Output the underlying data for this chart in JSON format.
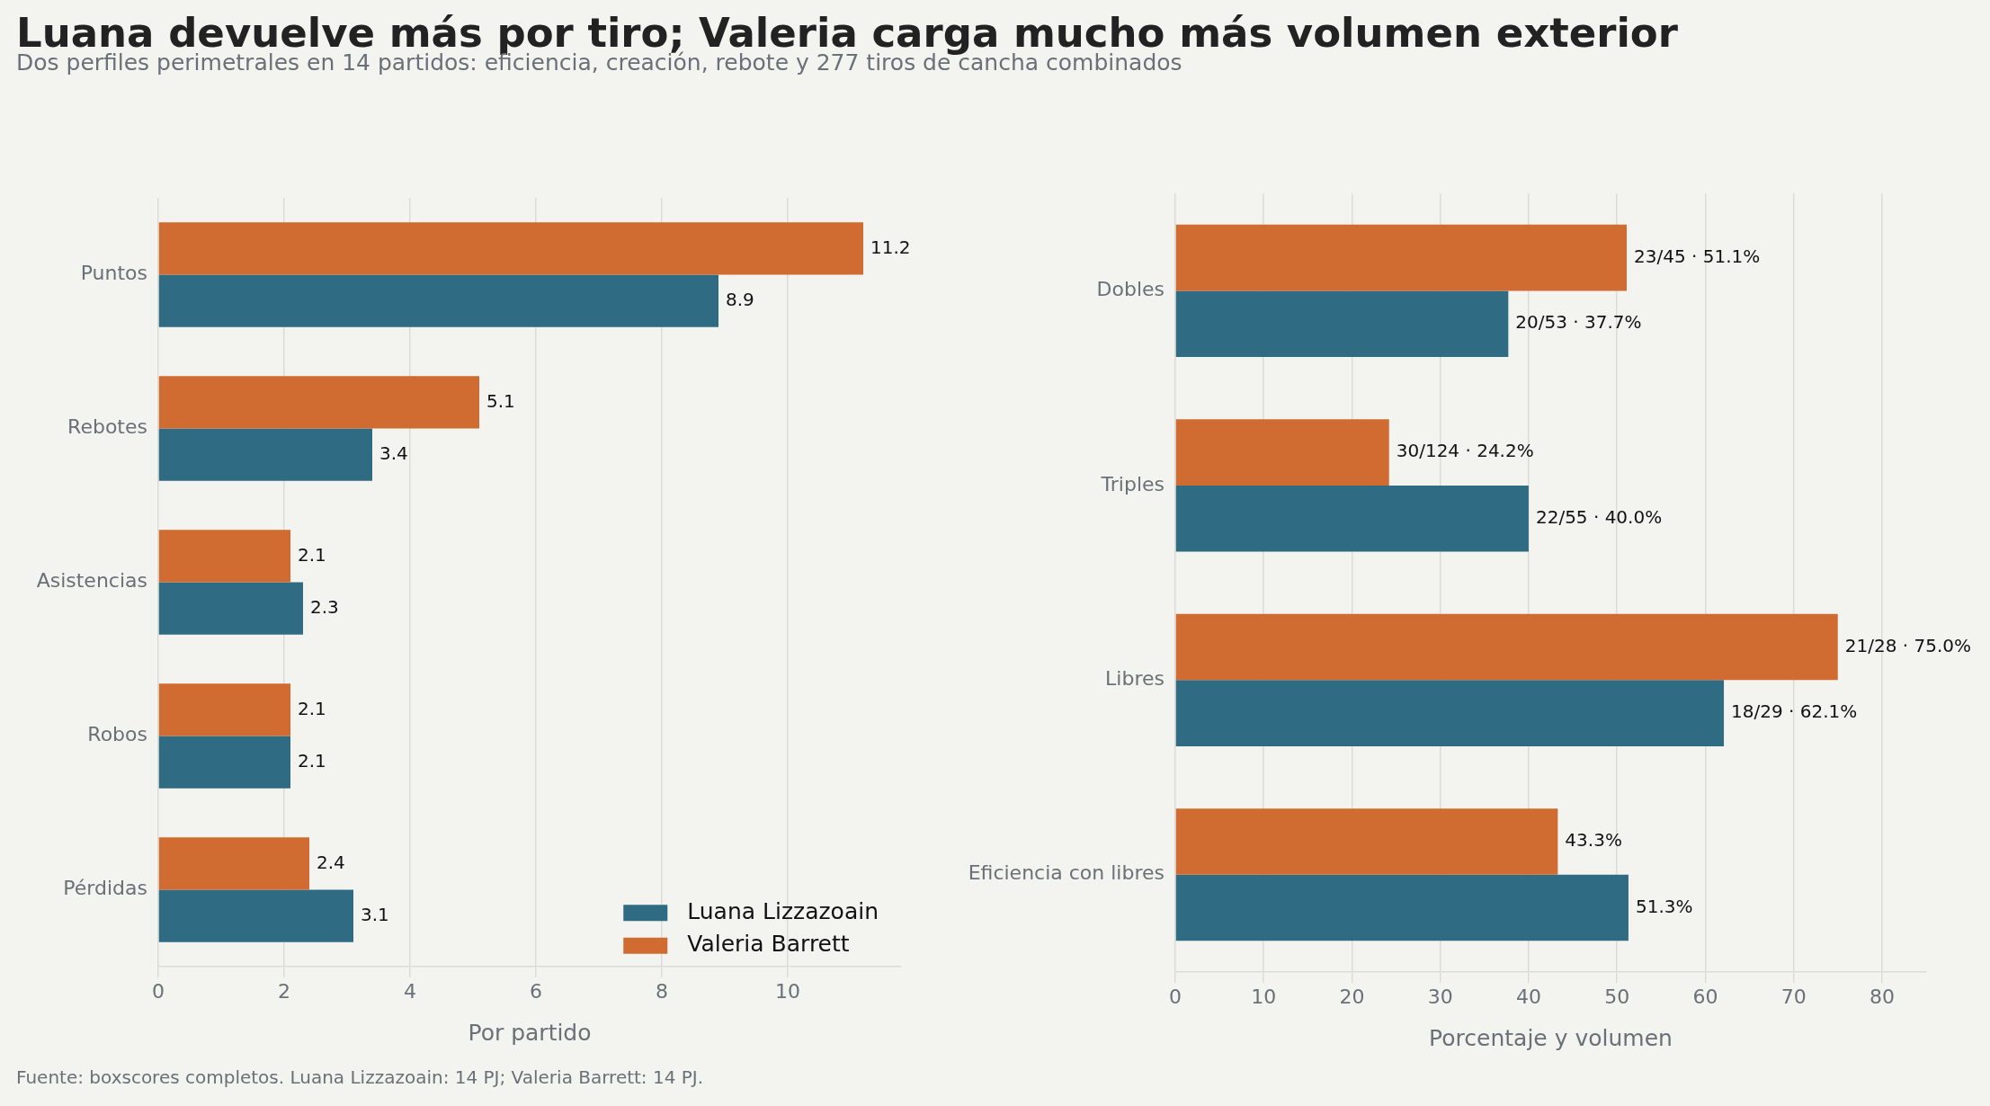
{
  "chart_data": [
    {
      "type": "bar",
      "orientation": "horizontal",
      "title": "Luana devuelve más por tiro; Valeria carga mucho más volumen exterior",
      "subtitle": "Dos perfiles perimetrales en 14 partidos: eficiencia, creación, rebote y 277 tiros de cancha combinados",
      "annotations": [
        "Fuente: boxscores completos. Luana Lizzazoain: 14 PJ; Valeria Barrett: 14 PJ."
      ],
      "xlabel": "Por partido",
      "categories": [
        "Puntos",
        "Rebotes",
        "Asistencias",
        "Robos",
        "Pérdidas"
      ],
      "series": [
        {
          "name": "Luana Lizzazoain",
          "color": "#306b84",
          "values": [
            8.9,
            3.4,
            2.3,
            2.1,
            3.1
          ]
        },
        {
          "name": "Valeria Barrett",
          "color": "#d06b32",
          "values": [
            11.2,
            5.1,
            2.1,
            2.1,
            2.4
          ]
        }
      ],
      "xlim": [
        0,
        11.8
      ],
      "xticks": [
        0,
        2,
        4,
        6,
        8,
        10
      ],
      "grid": "x",
      "legend": "bottom right",
      "data_labels": true
    },
    {
      "type": "bar",
      "orientation": "horizontal",
      "xlabel": "Porcentaje y volumen",
      "categories": [
        "Dobles",
        "Triples",
        "Libres",
        "Eficiencia con libres"
      ],
      "series": [
        {
          "color": "#306b84",
          "values": [
            37.7,
            40.0,
            62.1,
            51.3
          ],
          "value_labels": [
            "20/53 · 37.7%",
            "22/55 · 40.0%",
            "18/29 · 62.1%",
            "51.3%"
          ]
        },
        {
          "color": "#d06b32",
          "values": [
            51.1,
            24.2,
            75.0,
            43.3
          ],
          "value_labels": [
            "23/45 · 51.1%",
            "30/124 · 24.2%",
            "21/28 · 75.0%",
            "43.3%"
          ]
        }
      ],
      "xlim": [
        0,
        85
      ],
      "xticks": [
        0,
        10,
        20,
        30,
        40,
        50,
        60,
        70,
        80
      ],
      "grid": "x"
    }
  ]
}
